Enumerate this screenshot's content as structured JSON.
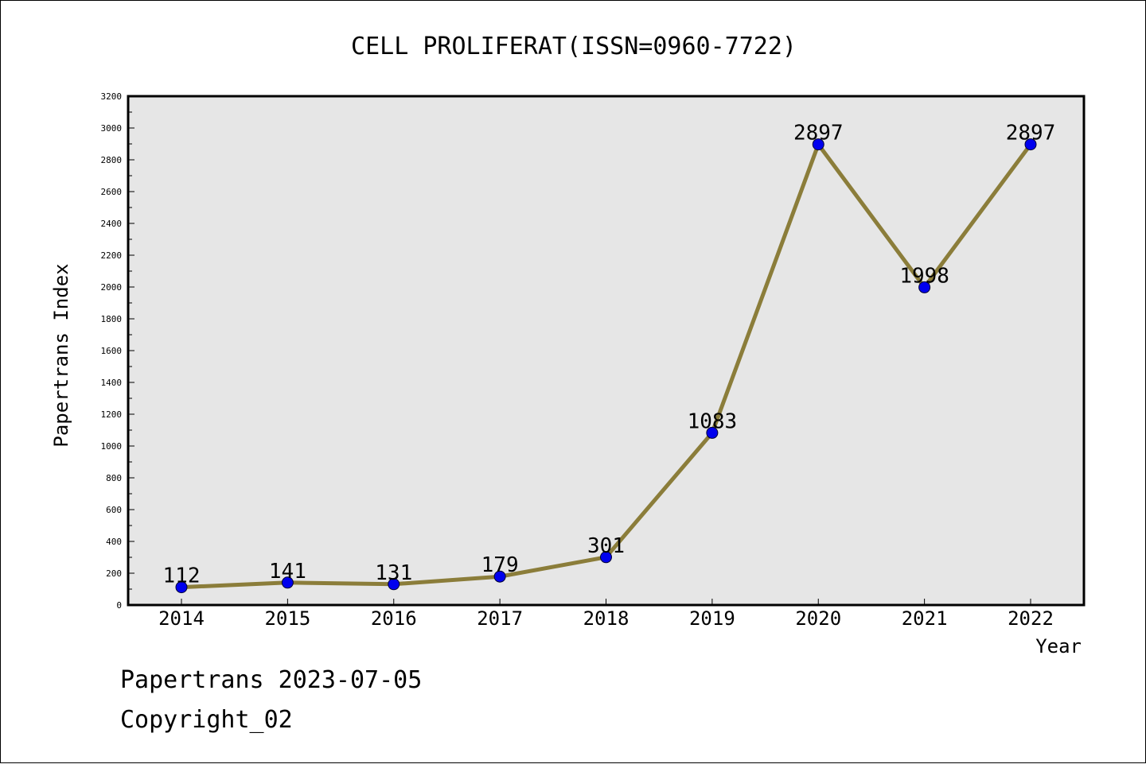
{
  "chart_data": {
    "type": "line",
    "title": "CELL PROLIFERAT(ISSN=0960-7722)",
    "xlabel": "Year",
    "ylabel": "Papertrans Index",
    "categories": [
      "2014",
      "2015",
      "2016",
      "2017",
      "2018",
      "2019",
      "2020",
      "2021",
      "2022"
    ],
    "series": [
      {
        "values": [
          112,
          141,
          131,
          179,
          301,
          1083,
          2897,
          1998,
          2897
        ]
      }
    ],
    "data_labels": [
      "112",
      "141",
      "131",
      "179",
      "301",
      "1083",
      "2897",
      "1998",
      "2897"
    ],
    "ylim": [
      0,
      3200
    ],
    "yticks": [
      "0",
      "200",
      "400",
      "600",
      "800",
      "1000",
      "1200",
      "1400",
      "1600",
      "1800",
      "2000",
      "2200",
      "2400",
      "2600",
      "2800",
      "3000",
      "3200"
    ],
    "grid": false,
    "colors": {
      "line": "#8b7d3a",
      "marker": "#0000ee",
      "plot_bg": "#e6e6e6"
    }
  },
  "footer": {
    "line1": "Papertrans 2023-07-05",
    "line2": "Copyright_02"
  }
}
